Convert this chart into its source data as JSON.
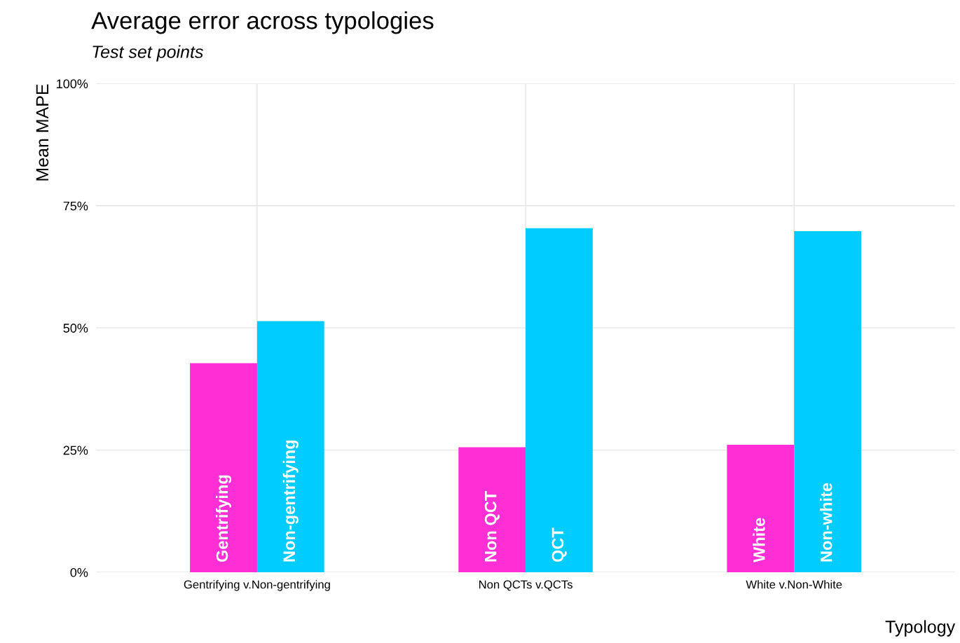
{
  "chart_data": {
    "type": "bar",
    "title": "Average error across typologies",
    "subtitle": "Test set points",
    "xlabel": "Typology",
    "ylabel": "Mean MAPE",
    "categories": [
      "Gentrifying v.Non-gentrifying",
      "Non QCTs v.QCTs",
      "White v.Non-White"
    ],
    "series": [
      {
        "color": "#ff2ed5",
        "values": [
          42.8,
          25.6,
          26.1
        ],
        "value_labels": [
          "Gentrifying",
          "Non QCT",
          "White"
        ]
      },
      {
        "color": "#00ccff",
        "values": [
          51.4,
          70.4,
          69.8
        ],
        "value_labels": [
          "Non-gentrifying",
          "QCT",
          "Non-white"
        ]
      }
    ],
    "ylim": [
      0,
      100
    ],
    "yticks": [
      {
        "value": 0,
        "label": "0%"
      },
      {
        "value": 25,
        "label": "25%"
      },
      {
        "value": 50,
        "label": "50%"
      },
      {
        "value": 75,
        "label": "75%"
      },
      {
        "value": 100,
        "label": "100%"
      }
    ],
    "grid": true,
    "legend": false
  }
}
